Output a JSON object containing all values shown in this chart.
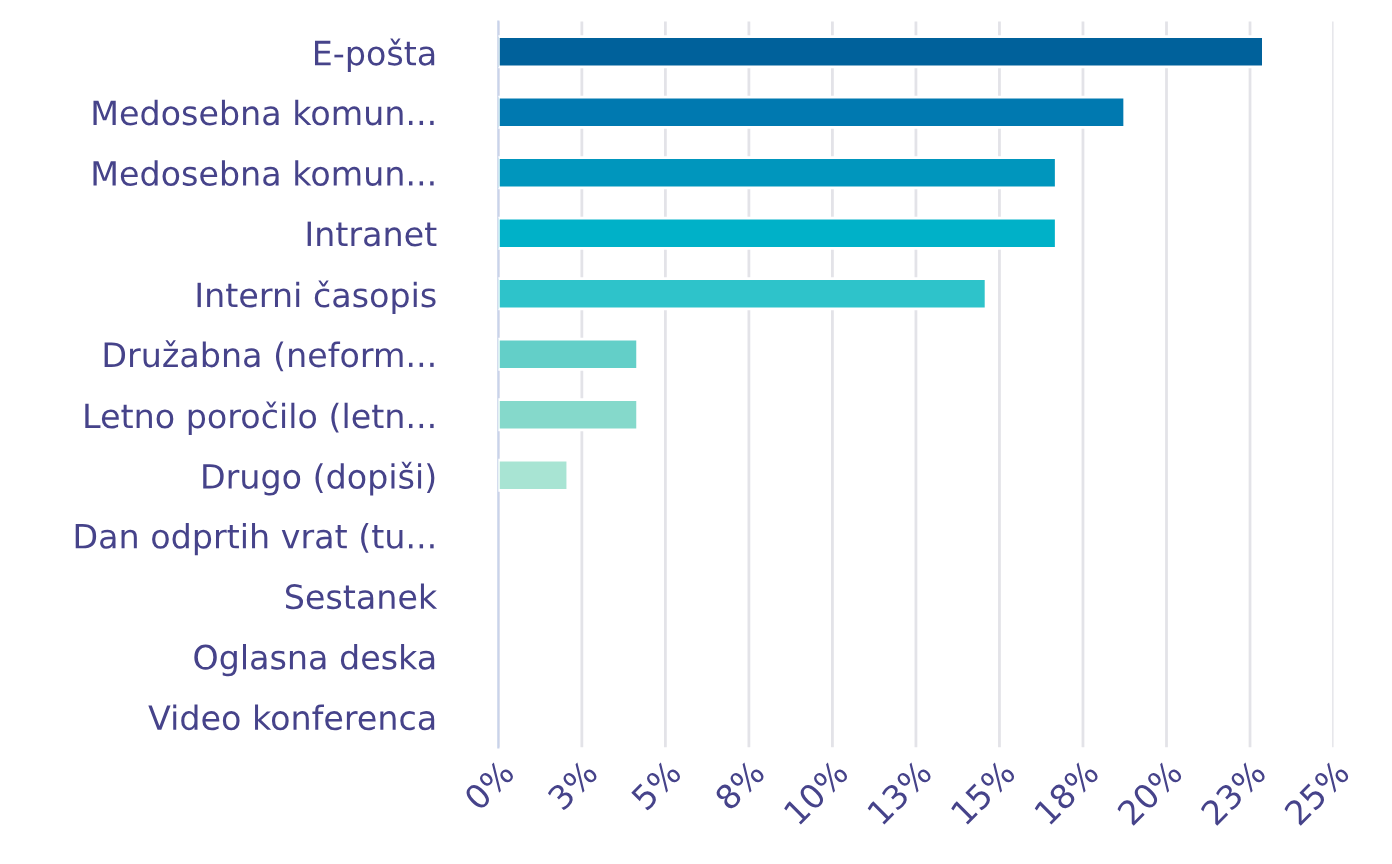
{
  "chart_data": {
    "type": "bar",
    "orientation": "horizontal",
    "categories": [
      "E-pošta",
      "Medosebna komun...",
      "Medosebna komun...",
      "Intranet",
      "Interni časopis",
      "Družabna (neform...",
      "Letno poročilo (letn...",
      "Drugo (dopiši)",
      "Dan odprtih vrat (tu...",
      "Sestanek",
      "Oglasna deska",
      "Video konferenca"
    ],
    "values": [
      22.9,
      18.75,
      16.7,
      16.7,
      14.6,
      4.17,
      4.17,
      2.08,
      0,
      0,
      0,
      0
    ],
    "colors": [
      "#00619b",
      "#0079b0",
      "#0096bd",
      "#00b1c8",
      "#2ec3ca",
      "#63cfc8",
      "#85d9cb",
      "#a8e4d3",
      null,
      null,
      null,
      null
    ],
    "xlim": [
      0,
      25
    ],
    "xticks": [
      {
        "value": 0,
        "label": "0%"
      },
      {
        "value": 2.5,
        "label": "3%"
      },
      {
        "value": 5,
        "label": "5%"
      },
      {
        "value": 7.5,
        "label": "8%"
      },
      {
        "value": 10,
        "label": "10%"
      },
      {
        "value": 12.5,
        "label": "13%"
      },
      {
        "value": 15,
        "label": "15%"
      },
      {
        "value": 17.5,
        "label": "18%"
      },
      {
        "value": 20,
        "label": "20%"
      },
      {
        "value": 22.5,
        "label": "23%"
      },
      {
        "value": 25,
        "label": "25%"
      }
    ],
    "grid": "x"
  }
}
